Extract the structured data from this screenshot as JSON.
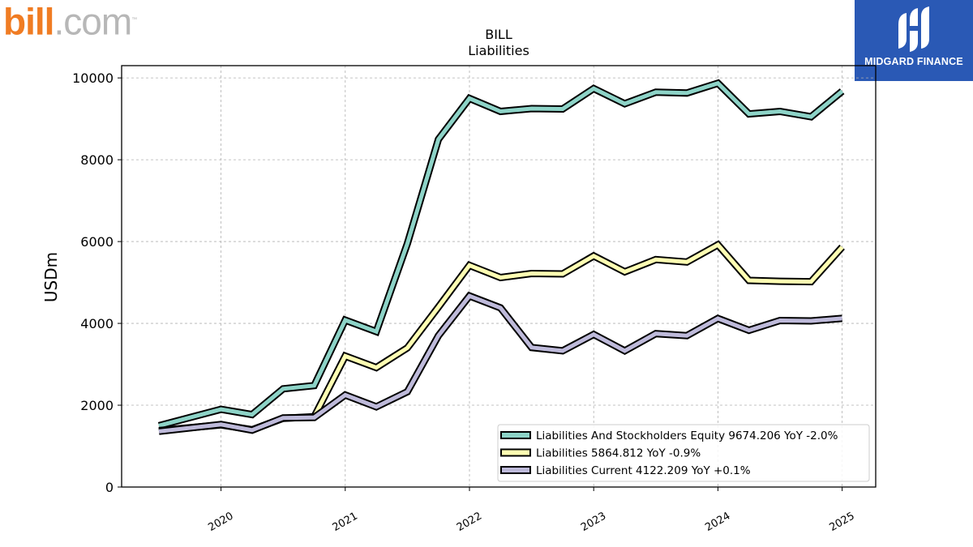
{
  "brand": {
    "left": "bill",
    "right": ".com",
    "trademark": "™"
  },
  "partner": {
    "name": "MIDGARD FINANCE"
  },
  "chart_data": {
    "type": "line",
    "title": "BILL",
    "subtitle": "Liabilities",
    "xlabel": "",
    "ylabel": "USDm",
    "ylim": [
      0,
      10300
    ],
    "yticks": [
      0,
      2000,
      4000,
      6000,
      8000,
      10000
    ],
    "xlim": [
      2019.2,
      2025.27
    ],
    "xticks": [
      2020,
      2021,
      2022,
      2023,
      2024,
      2025
    ],
    "xtick_labels": [
      "2020",
      "2021",
      "2022",
      "2023",
      "2024",
      "2025"
    ],
    "grid": true,
    "legend_position": "bottom-right",
    "x": [
      2019.5,
      2020.0,
      2020.25,
      2020.5,
      2020.75,
      2021.0,
      2021.25,
      2021.5,
      2021.75,
      2022.0,
      2022.25,
      2022.5,
      2022.75,
      2023.0,
      2023.25,
      2023.5,
      2023.75,
      2024.0,
      2024.25,
      2024.5,
      2024.75,
      2025.0
    ],
    "series": [
      {
        "name": "Liabilities And Stockholders Equity",
        "legend_label": "Liabilities And Stockholders Equity  9674.206 YoY -2.0%",
        "color": "#8dd3c7",
        "values": [
          1500,
          1900,
          1770,
          2400,
          2480,
          4080,
          3800,
          5950,
          8500,
          9500,
          9180,
          9250,
          9240,
          9740,
          9370,
          9650,
          9630,
          9870,
          9120,
          9180,
          9050,
          9674
        ]
      },
      {
        "name": "Liabilities",
        "legend_label": "Liabilities  5864.812 YoY -0.9%",
        "color": "#ffffb3",
        "values": [
          1380,
          1520,
          1400,
          1680,
          1720,
          3200,
          2920,
          3400,
          4400,
          5420,
          5120,
          5220,
          5210,
          5650,
          5260,
          5560,
          5500,
          5920,
          5050,
          5030,
          5020,
          5865
        ]
      },
      {
        "name": "Liabilities Current",
        "legend_label": "Liabilities Current  4122.209 YoY +0.1%",
        "color": "#bebada",
        "values": [
          1360,
          1530,
          1390,
          1690,
          1700,
          2250,
          1960,
          2330,
          3700,
          4670,
          4380,
          3410,
          3330,
          3730,
          3330,
          3750,
          3700,
          4120,
          3830,
          4070,
          4060,
          4122
        ]
      }
    ]
  }
}
